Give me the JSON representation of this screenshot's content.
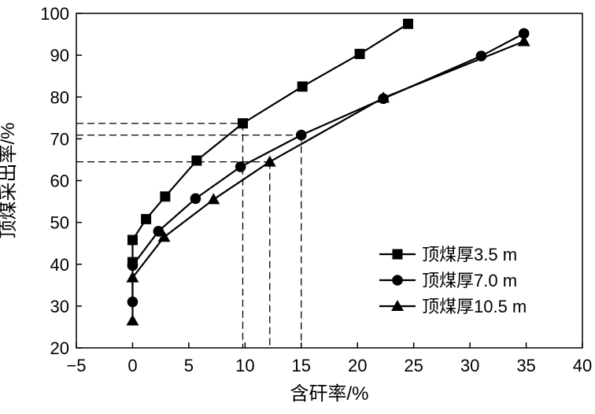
{
  "chart_data": {
    "type": "line",
    "xlabel": "含矸率/%",
    "ylabel": "顶煤采出率/%",
    "xlim": [
      -5,
      40
    ],
    "ylim": [
      20,
      100
    ],
    "xticks": [
      -5,
      0,
      5,
      10,
      15,
      20,
      25,
      30,
      35,
      40
    ],
    "yticks": [
      20,
      30,
      40,
      50,
      60,
      70,
      80,
      90,
      100
    ],
    "x_tick_labels": [
      "−5",
      "0",
      "5",
      "10",
      "15",
      "20",
      "25",
      "30",
      "35",
      "40"
    ],
    "y_tick_labels": [
      "20",
      "30",
      "40",
      "50",
      "60",
      "70",
      "80",
      "90",
      "100"
    ],
    "grid": false,
    "legend_position": "bottom-right",
    "series": [
      {
        "name": "顶煤厚3.5 m",
        "marker": "square",
        "points": [
          [
            0.0,
            40.5
          ],
          [
            0.0,
            45.8
          ],
          [
            1.2,
            50.8
          ],
          [
            2.9,
            56.2
          ],
          [
            5.7,
            64.8
          ],
          [
            9.8,
            73.7
          ],
          [
            15.1,
            82.5
          ],
          [
            20.2,
            90.3
          ],
          [
            24.5,
            97.5
          ]
        ]
      },
      {
        "name": "顶煤厚7.0 m",
        "marker": "circle",
        "points": [
          [
            0.0,
            31.0
          ],
          [
            0.0,
            39.7
          ],
          [
            2.3,
            47.9
          ],
          [
            5.6,
            55.7
          ],
          [
            9.6,
            63.3
          ],
          [
            15.0,
            70.9
          ],
          [
            22.3,
            79.6
          ],
          [
            31.0,
            89.8
          ],
          [
            34.8,
            95.2
          ]
        ]
      },
      {
        "name": "顶煤厚10.5 m",
        "marker": "triangle",
        "points": [
          [
            0.0,
            26.5
          ],
          [
            0.0,
            36.8
          ],
          [
            2.8,
            46.5
          ],
          [
            7.2,
            55.5
          ],
          [
            12.2,
            64.5
          ],
          [
            22.3,
            79.8
          ],
          [
            34.8,
            93.3
          ]
        ]
      }
    ],
    "reference_lines": [
      {
        "x": 9.8,
        "y": 73.7
      },
      {
        "x": 15.0,
        "y": 70.9
      },
      {
        "x": 12.2,
        "y": 64.5
      }
    ]
  }
}
